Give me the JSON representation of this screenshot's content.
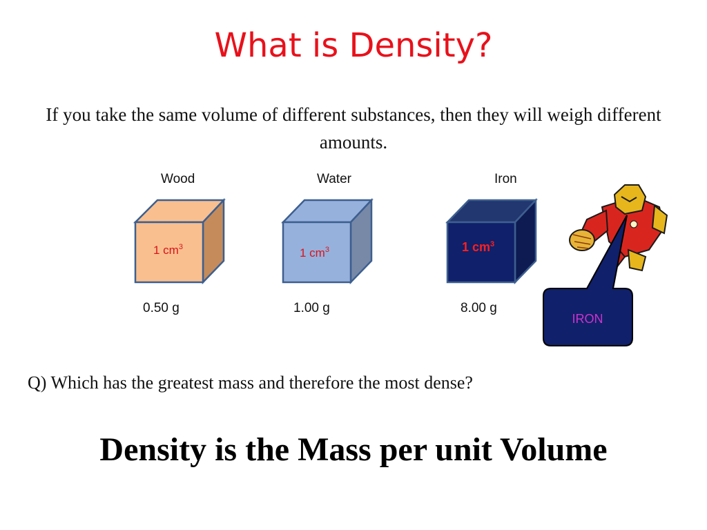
{
  "slide": {
    "title": "What is Density?",
    "intro": "If you take the same volume of different substances, then they will weigh different amounts.",
    "question": "Q) Which has the greatest mass and therefore the most dense?",
    "definition": "Density is the Mass per unit Volume"
  },
  "cubes": [
    {
      "name": "Wood",
      "volume": "1 cm",
      "volume_exp": "3",
      "mass": "0.50 g",
      "front": "#f9bf8f",
      "top": "#f9bf8f",
      "side": "#c58b5b",
      "stroke": "#3d5f8f",
      "label_color": "#d9141b"
    },
    {
      "name": "Water",
      "volume": "1 cm",
      "volume_exp": "3",
      "mass": "1.00 g",
      "front": "#96b1dc",
      "top": "#96b1dc",
      "side": "#7889a8",
      "stroke": "#3d5f8f",
      "label_color": "#d9141b"
    },
    {
      "name": "Iron",
      "volume": "1 cm",
      "volume_exp": "3",
      "mass": "8.00 g",
      "front": "#10206a",
      "top": "#22366f",
      "side": "#0e1b52",
      "stroke": "#3d5f8f",
      "label_color": "#ff1f1f"
    }
  ],
  "callout": {
    "text": "IRON",
    "fill": "#10206a",
    "text_color": "#cc33cc",
    "image": "iron-man-figure-icon"
  }
}
